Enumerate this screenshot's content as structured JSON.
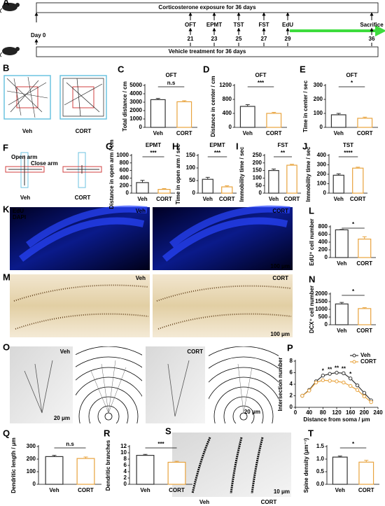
{
  "timeline": {
    "panel": "A",
    "top_bar": "Corticosterone exposure for 36 days",
    "bottom_bar": "Vehicle treatment for 36 days",
    "start": "Day 0",
    "events": [
      {
        "day": 21,
        "label": "OFT"
      },
      {
        "day": 23,
        "label": "EPMT"
      },
      {
        "day": 25,
        "label": "TST"
      },
      {
        "day": 27,
        "label": "FST"
      },
      {
        "day": 29,
        "label": "EdU"
      },
      {
        "day": 36,
        "label": "Sacrifice"
      }
    ]
  },
  "images": [
    {
      "panel": "B",
      "labels": [
        "Veh",
        "CORT"
      ]
    },
    {
      "panel": "F",
      "labels": [
        "Veh",
        "CORT"
      ],
      "notes": [
        "Open arm",
        "Close arm"
      ]
    },
    {
      "panel": "K",
      "labels": [
        "Veh",
        "CORT"
      ],
      "notes": [
        "EdU",
        "DAPI",
        "100 μm"
      ]
    },
    {
      "panel": "M",
      "labels": [
        "Veh",
        "CORT"
      ],
      "notes": [
        "100 μm"
      ]
    },
    {
      "panel": "O",
      "labels": [
        "Veh",
        "CORT"
      ],
      "notes": [
        "20 μm",
        "20 μm"
      ]
    },
    {
      "panel": "S",
      "labels": [
        "Veh",
        "CORT"
      ],
      "notes": [
        "10 μm"
      ]
    }
  ],
  "chart_data": [
    {
      "type": "bar",
      "panel": "C",
      "title": "OFT",
      "ylabel": "Total distance / cm",
      "categories": [
        "Veh",
        "CORT"
      ],
      "values": [
        3300,
        3050
      ],
      "errors": [
        150,
        130
      ],
      "colors": [
        "#333333",
        "#e8a33d"
      ],
      "ylim": [
        0,
        5000
      ],
      "yticks": [
        0,
        1000,
        2000,
        3000,
        4000,
        5000
      ],
      "significance": "n.s"
    },
    {
      "type": "bar",
      "panel": "D",
      "title": "OFT",
      "ylabel": "Distance in center / cm",
      "categories": [
        "Veh",
        "CORT"
      ],
      "values": [
        600,
        400
      ],
      "errors": [
        50,
        30
      ],
      "colors": [
        "#333333",
        "#e8a33d"
      ],
      "ylim": [
        0,
        1200
      ],
      "yticks": [
        0,
        400,
        800,
        1200
      ],
      "significance": "***"
    },
    {
      "type": "bar",
      "panel": "E",
      "title": "OFT",
      "ylabel": "Time in center / sec",
      "categories": [
        "Veh",
        "CORT"
      ],
      "values": [
        90,
        65
      ],
      "errors": [
        10,
        8
      ],
      "colors": [
        "#333333",
        "#e8a33d"
      ],
      "ylim": [
        0,
        300
      ],
      "yticks": [
        0,
        100,
        200,
        300
      ],
      "significance": "*"
    },
    {
      "type": "bar",
      "panel": "G",
      "title": "EPMT",
      "ylabel": "Distance in open arm / cm",
      "categories": [
        "Veh",
        "CORT"
      ],
      "values": [
        280,
        100
      ],
      "errors": [
        60,
        20
      ],
      "colors": [
        "#333333",
        "#e8a33d"
      ],
      "ylim": [
        0,
        1000
      ],
      "yticks": [
        0,
        200,
        400,
        600,
        800,
        1000
      ],
      "significance": "***"
    },
    {
      "type": "bar",
      "panel": "H",
      "title": "EPMT",
      "ylabel": "Time in open arm / sec",
      "categories": [
        "Veh",
        "CORT"
      ],
      "values": [
        55,
        25
      ],
      "errors": [
        8,
        4
      ],
      "colors": [
        "#333333",
        "#e8a33d"
      ],
      "ylim": [
        0,
        150
      ],
      "yticks": [
        0,
        50,
        100,
        150
      ],
      "significance": "***"
    },
    {
      "type": "bar",
      "panel": "I",
      "title": "FST",
      "ylabel": "Immobility time / sec",
      "categories": [
        "Veh",
        "CORT"
      ],
      "values": [
        150,
        185
      ],
      "errors": [
        10,
        6
      ],
      "colors": [
        "#333333",
        "#e8a33d"
      ],
      "ylim": [
        0,
        250
      ],
      "yticks": [
        0,
        50,
        100,
        150,
        200,
        250
      ],
      "significance": "**"
    },
    {
      "type": "bar",
      "panel": "J",
      "title": "TST",
      "ylabel": "Immobility time / sec",
      "categories": [
        "Veh",
        "CORT"
      ],
      "values": [
        190,
        265
      ],
      "errors": [
        15,
        10
      ],
      "colors": [
        "#333333",
        "#e8a33d"
      ],
      "ylim": [
        0,
        400
      ],
      "yticks": [
        0,
        100,
        200,
        300,
        400
      ],
      "significance": "****"
    },
    {
      "type": "bar",
      "panel": "L",
      "ylabel": "EdU⁺ cell number",
      "categories": [
        "Veh",
        "CORT"
      ],
      "values": [
        720,
        480
      ],
      "errors": [
        10,
        60
      ],
      "colors": [
        "#333333",
        "#e8a33d"
      ],
      "ylim": [
        0,
        800
      ],
      "yticks": [
        0,
        200,
        400,
        600,
        800
      ],
      "significance": "*"
    },
    {
      "type": "bar",
      "panel": "N",
      "ylabel": "DCX⁺ cell number",
      "categories": [
        "Veh",
        "CORT"
      ],
      "values": [
        1350,
        1050
      ],
      "errors": [
        100,
        60
      ],
      "colors": [
        "#333333",
        "#e8a33d"
      ],
      "ylim": [
        0,
        2000
      ],
      "yticks": [
        0,
        500,
        1000,
        1500,
        2000
      ],
      "significance": "*"
    },
    {
      "type": "line",
      "panel": "P",
      "xlabel": "Distance from soma / μm",
      "ylabel": "Intersection number",
      "x": [
        20,
        40,
        60,
        80,
        100,
        120,
        140,
        160,
        180,
        200,
        220
      ],
      "series": [
        {
          "name": "Veh",
          "color": "#333333",
          "values": [
            2.0,
            3.0,
            4.5,
            5.5,
            5.8,
            6.0,
            5.9,
            5.0,
            3.8,
            2.5,
            1.2
          ]
        },
        {
          "name": "CORT",
          "color": "#e8a33d",
          "values": [
            2.0,
            2.9,
            4.3,
            4.7,
            4.6,
            4.5,
            4.3,
            3.7,
            3.0,
            1.9,
            0.9
          ]
        }
      ],
      "significance": [
        null,
        null,
        null,
        "*",
        "**",
        "**",
        "**",
        "*",
        null,
        null,
        null
      ],
      "xlim": [
        0,
        240
      ],
      "xticks": [
        0,
        40,
        80,
        120,
        160,
        200,
        240
      ],
      "ylim": [
        0,
        8
      ],
      "yticks": [
        0,
        2,
        4,
        6,
        8
      ]
    },
    {
      "type": "bar",
      "panel": "Q",
      "ylabel": "Dendritic length / μm",
      "categories": [
        "Veh",
        "CORT"
      ],
      "values": [
        220,
        205
      ],
      "errors": [
        10,
        12
      ],
      "colors": [
        "#333333",
        "#e8a33d"
      ],
      "ylim": [
        0,
        300
      ],
      "yticks": [
        0,
        100,
        200,
        300
      ],
      "significance": "n.s"
    },
    {
      "type": "bar",
      "panel": "R",
      "ylabel": "Dendritic branches",
      "categories": [
        "Veh",
        "CORT"
      ],
      "values": [
        9.2,
        7.0
      ],
      "errors": [
        0.3,
        0.3
      ],
      "colors": [
        "#333333",
        "#e8a33d"
      ],
      "ylim": [
        0,
        12
      ],
      "yticks": [
        0,
        2,
        4,
        6,
        8,
        10,
        12
      ],
      "significance": "***"
    },
    {
      "type": "bar",
      "panel": "T",
      "ylabel": "Spine density (μm⁻¹)",
      "categories": [
        "Veh",
        "CORT"
      ],
      "values": [
        1.08,
        0.88
      ],
      "errors": [
        0.04,
        0.07
      ],
      "colors": [
        "#333333",
        "#e8a33d"
      ],
      "ylim": [
        0,
        1.5
      ],
      "yticks": [
        {
          "value": 0,
          "label": "0.0"
        },
        0.5,
        {
          "value": 1,
          "label": "1.0"
        },
        1.5
      ],
      "significance": "*"
    }
  ]
}
